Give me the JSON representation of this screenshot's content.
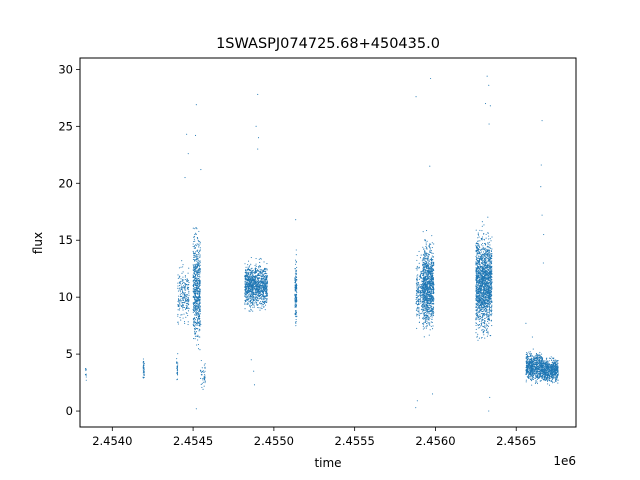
{
  "chart_data": {
    "type": "scatter",
    "title": "1SWASPJ074725.68+450435.0",
    "xlabel": "time",
    "ylabel": "flux",
    "x_offset_label": "1e6",
    "xlim": [
      2453800,
      2456870
    ],
    "ylim": [
      -1.4,
      31.0
    ],
    "x_ticks": [
      2454000,
      2454500,
      2455000,
      2455500,
      2456000,
      2456500
    ],
    "x_tick_labels": [
      "2.4540",
      "2.4545",
      "2.4550",
      "2.4555",
      "2.4560",
      "2.4565"
    ],
    "y_ticks": [
      0,
      5,
      10,
      15,
      20,
      25,
      30
    ],
    "y_tick_labels": [
      "0",
      "5",
      "10",
      "15",
      "20",
      "25",
      "30"
    ],
    "grid": false,
    "marker_color": "#1f77b4",
    "series": [
      {
        "clusters": [
          {
            "x": [
              2453833,
              2453840
            ],
            "center": 3.3,
            "spread": 0.5,
            "n": 12
          },
          {
            "x": [
              2454190,
              2454198
            ],
            "center": 3.6,
            "spread": 0.6,
            "n": 40
          },
          {
            "x": [
              2454398,
              2454405
            ],
            "center": 3.9,
            "spread": 0.7,
            "n": 30
          },
          {
            "x": [
              2454405,
              2454475
            ],
            "center": 10.2,
            "spread": 1.6,
            "n": 220
          },
          {
            "x": [
              2454500,
              2454545
            ],
            "center": 10.8,
            "spread": 3.0,
            "n": 650
          },
          {
            "x": [
              2454545,
              2454575
            ],
            "center": 3.2,
            "spread": 0.9,
            "n": 40
          },
          {
            "x": [
              2454820,
              2454960
            ],
            "center": 11.0,
            "spread": 1.2,
            "n": 1100
          },
          {
            "x": [
              2455130,
              2455142
            ],
            "center": 10.5,
            "spread": 1.8,
            "n": 160
          },
          {
            "x": [
              2455880,
              2455920
            ],
            "center": 10.5,
            "spread": 2.0,
            "n": 180
          },
          {
            "x": [
              2455920,
              2455990
            ],
            "center": 11.0,
            "spread": 2.3,
            "n": 1100
          },
          {
            "x": [
              2456250,
              2456350
            ],
            "center": 11.2,
            "spread": 2.7,
            "n": 1700
          },
          {
            "x": [
              2456560,
              2456660
            ],
            "center": 3.9,
            "spread": 0.8,
            "n": 650
          },
          {
            "x": [
              2456660,
              2456760
            ],
            "center": 3.6,
            "spread": 0.7,
            "n": 650
          }
        ],
        "outliers": [
          {
            "x": 2454460,
            "y": 24.3
          },
          {
            "x": 2454470,
            "y": 22.6
          },
          {
            "x": 2454520,
            "y": 26.9
          },
          {
            "x": 2454515,
            "y": 24.2
          },
          {
            "x": 2454450,
            "y": 20.5
          },
          {
            "x": 2454548,
            "y": 21.2
          },
          {
            "x": 2454548,
            "y": 7.6
          },
          {
            "x": 2454520,
            "y": 0.2
          },
          {
            "x": 2454900,
            "y": 27.8
          },
          {
            "x": 2454905,
            "y": 24.0
          },
          {
            "x": 2454900,
            "y": 23.0
          },
          {
            "x": 2454890,
            "y": 25.0
          },
          {
            "x": 2454880,
            "y": 2.3
          },
          {
            "x": 2454875,
            "y": 3.5
          },
          {
            "x": 2454860,
            "y": 4.5
          },
          {
            "x": 2455880,
            "y": 27.6
          },
          {
            "x": 2455888,
            "y": 0.9
          },
          {
            "x": 2455878,
            "y": 0.3
          },
          {
            "x": 2455970,
            "y": 29.2
          },
          {
            "x": 2455965,
            "y": 21.5
          },
          {
            "x": 2455982,
            "y": 1.5
          },
          {
            "x": 2456320,
            "y": 29.4
          },
          {
            "x": 2456330,
            "y": 28.6
          },
          {
            "x": 2456310,
            "y": 27.0
          },
          {
            "x": 2456340,
            "y": 26.8
          },
          {
            "x": 2456332,
            "y": 25.2
          },
          {
            "x": 2456330,
            "y": 0.0
          },
          {
            "x": 2456336,
            "y": 1.2
          },
          {
            "x": 2456660,
            "y": 25.5
          },
          {
            "x": 2456655,
            "y": 21.6
          },
          {
            "x": 2456652,
            "y": 19.7
          },
          {
            "x": 2456660,
            "y": 17.2
          },
          {
            "x": 2456668,
            "y": 13.0
          },
          {
            "x": 2456670,
            "y": 15.5
          },
          {
            "x": 2456560,
            "y": 7.7
          },
          {
            "x": 2456600,
            "y": 6.5
          },
          {
            "x": 2455135,
            "y": 16.8
          },
          {
            "x": 2455136,
            "y": 7.5
          }
        ]
      }
    ]
  }
}
